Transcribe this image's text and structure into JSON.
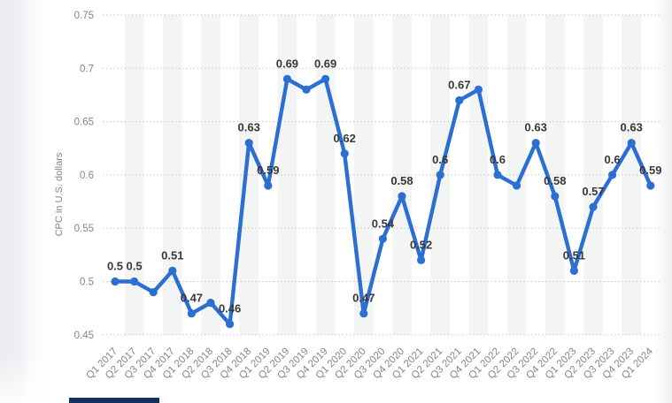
{
  "chart_data": {
    "type": "line",
    "title": "",
    "xlabel": "",
    "ylabel": "CPC in U.S. dollars",
    "ylim": [
      0.45,
      0.75
    ],
    "yticks": [
      0.75,
      0.7,
      0.65,
      0.6,
      0.55,
      0.5,
      0.45
    ],
    "ytick_labels": [
      "0.75",
      "0.7",
      "0.65",
      "0.6",
      "0.55",
      "0.5",
      "0.45"
    ],
    "grid": "horizontal-dotted",
    "legend": "none",
    "plot_bands": "alternating-vertical",
    "categories": [
      "Q1 2017",
      "Q2 2017",
      "Q3 2017",
      "Q4 2017",
      "Q1 2018",
      "Q2 2018",
      "Q3 2018",
      "Q4 2018",
      "Q1 2019",
      "Q2 2019",
      "Q3 2019",
      "Q4 2019",
      "Q1 2020",
      "Q2 2020",
      "Q3 2020",
      "Q4 2020",
      "Q1 2021",
      "Q2 2021",
      "Q3 2021",
      "Q4 2021",
      "Q1 2022",
      "Q2 2022",
      "Q3 2022",
      "Q4 2022",
      "Q1 2023",
      "Q2 2023",
      "Q3 2023",
      "Q4 2023",
      "Q1 2024"
    ],
    "series": [
      {
        "name": "CPC",
        "values": [
          0.5,
          0.5,
          0.49,
          0.51,
          0.47,
          0.48,
          0.46,
          0.63,
          0.59,
          0.69,
          0.68,
          0.69,
          0.62,
          0.47,
          0.54,
          0.58,
          0.52,
          0.6,
          0.67,
          0.68,
          0.6,
          0.59,
          0.63,
          0.58,
          0.51,
          0.57,
          0.6,
          0.63,
          0.59
        ]
      }
    ],
    "point_labels": [
      "0.5",
      "0.5",
      "",
      "0.51",
      "0.47",
      "",
      "0.46",
      "0.63",
      "0.59",
      "0.69",
      "",
      "0.69",
      "0.62",
      "0.47",
      "0.54",
      "0.58",
      "0.52",
      "0.6",
      "0.67",
      "",
      "0.6",
      "",
      "0.63",
      "0.58",
      "0.51",
      "0.57",
      "0.6",
      "0.63",
      "0.59"
    ],
    "colors": {
      "line": "#2b6fd3",
      "point": "#2b6fd3",
      "value_label": "#383838",
      "axis_text": "#868686",
      "grid": "#c6c6c6",
      "band": "#f3f4f4"
    }
  },
  "page": {
    "background": "#ffffff"
  }
}
